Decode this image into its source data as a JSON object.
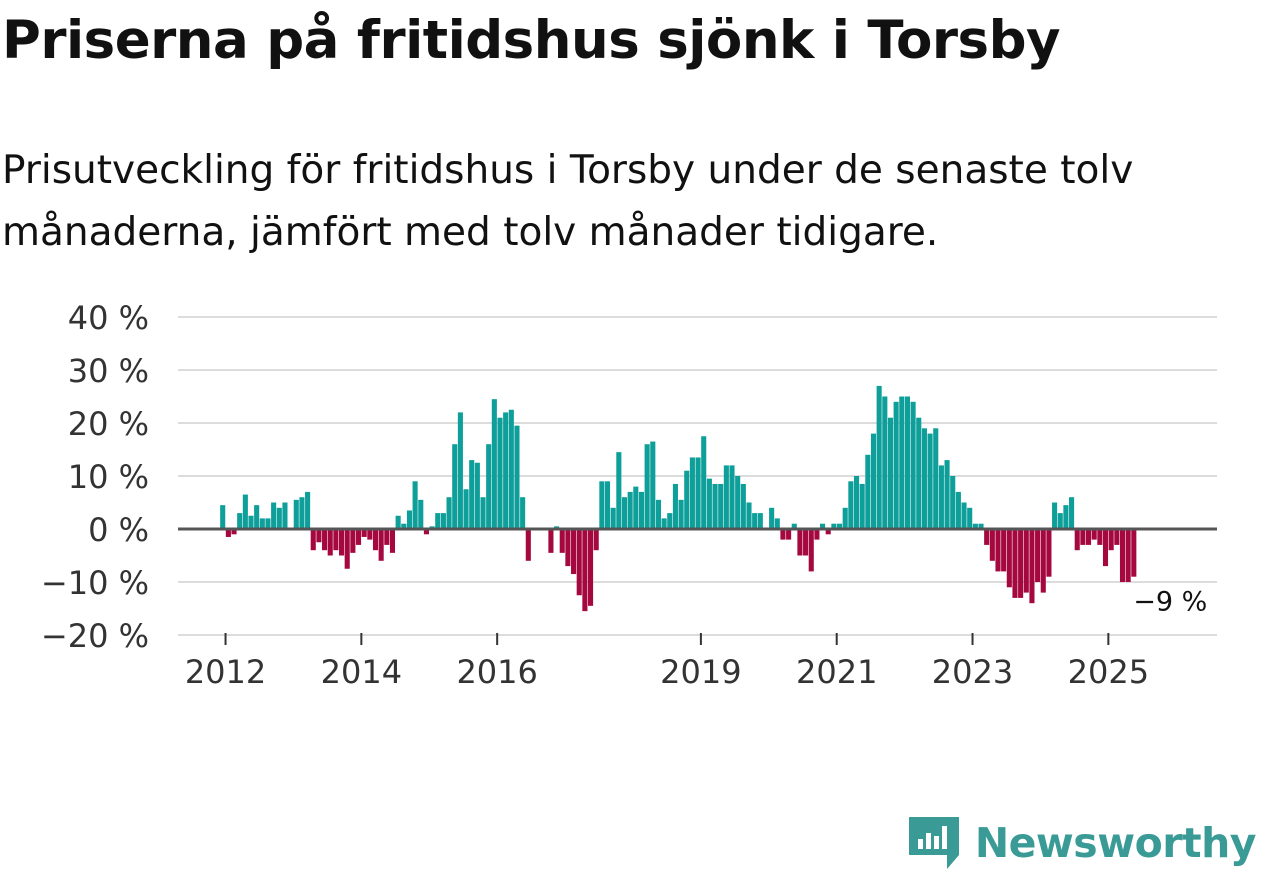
{
  "title": "Priserna på fritidshus sjönk i Torsby",
  "subtitle": "Prisutveckling för fritidshus i Torsby under de senaste tolv månaderna, jämfört med tolv månader tidigare.",
  "brand": {
    "name": "Newsworthy",
    "icon": "newsworthy-logo-icon",
    "color": "#3a9b96"
  },
  "chart_data": {
    "type": "bar",
    "title": "",
    "xlabel": "",
    "ylabel": "",
    "ylim": [
      -20,
      40
    ],
    "yticks": [
      40,
      30,
      20,
      10,
      0,
      -10,
      -20
    ],
    "ytick_labels": [
      "40 %",
      "30 %",
      "20 %",
      "10 %",
      "0 %",
      "−10 %",
      "−20 %"
    ],
    "xticks": [
      2012,
      2014,
      2016,
      2019,
      2021,
      2023,
      2025
    ],
    "xtick_labels": [
      "2012",
      "2014",
      "2016",
      "2019",
      "2021",
      "2023",
      "2025"
    ],
    "x_start": "2011-08",
    "x_range": [
      2011.3,
      2026.6
    ],
    "positive_color": "#0e9f9a",
    "negative_color": "#a5073f",
    "grid": true,
    "values": [
      null,
      null,
      null,
      null,
      4.5,
      -1.5,
      -1,
      3,
      6.5,
      2.5,
      4.5,
      2,
      2,
      5,
      4,
      5,
      null,
      5.5,
      6,
      7,
      -4,
      -2.5,
      -4,
      -5,
      -4,
      -5,
      -7.5,
      -4.5,
      -3,
      -1.5,
      -2,
      -4,
      -6,
      -3,
      -4.5,
      2.5,
      1,
      3.5,
      9,
      5.5,
      -1,
      0.5,
      3,
      3,
      6,
      16,
      22,
      7.5,
      13,
      12.5,
      6,
      16,
      24.5,
      21,
      22,
      22.5,
      19.5,
      6,
      -6,
      null,
      null,
      null,
      -4.5,
      0.5,
      -4.5,
      -7,
      -8.5,
      -12.5,
      -15.5,
      -14.5,
      -4,
      9,
      9,
      4,
      14.5,
      6,
      7,
      8,
      7,
      16,
      16.5,
      5.5,
      2,
      3,
      8.5,
      5.5,
      11,
      13.5,
      13.5,
      17.5,
      9.5,
      8.5,
      8.5,
      12,
      12,
      10,
      8.5,
      5,
      3,
      3,
      null,
      4,
      2,
      -2,
      -2,
      1,
      -5,
      -5,
      -8,
      -2,
      1,
      -1,
      1,
      1,
      4,
      9,
      10,
      8.5,
      14,
      18,
      27,
      25,
      21,
      24,
      25,
      25,
      24,
      21,
      19,
      18,
      19,
      12,
      13,
      10,
      7,
      5,
      4,
      1,
      1,
      -3,
      -6,
      -8,
      -8,
      -11,
      -13,
      -13,
      -12,
      -14,
      -10,
      -12,
      -9,
      5,
      3,
      4.5,
      6,
      -4,
      -3,
      -3,
      -2,
      -3,
      -7,
      -4,
      -3,
      -10,
      -10,
      -9
    ],
    "annotations": [
      {
        "text": "−9 %",
        "x": "2026-01",
        "y": -9
      }
    ]
  }
}
